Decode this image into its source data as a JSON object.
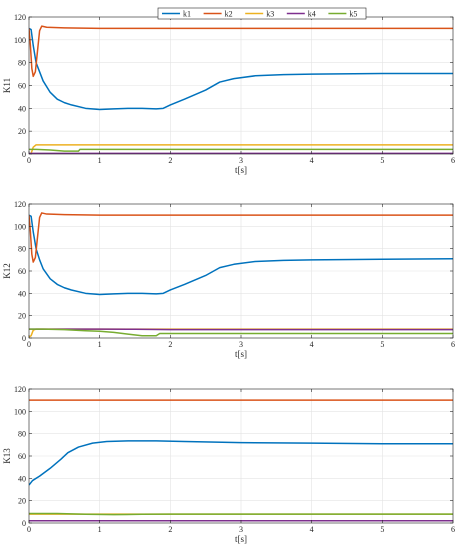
{
  "chart_data": [
    {
      "type": "line",
      "xlabel": "t[s]",
      "ylabel": "K11",
      "xlim": [
        0,
        6
      ],
      "ylim": [
        0,
        120
      ],
      "xticks": [
        0,
        1,
        2,
        3,
        4,
        5,
        6
      ],
      "yticks": [
        0,
        20,
        40,
        60,
        80,
        100,
        120
      ],
      "grid": true,
      "legend": "top-center",
      "series": [
        {
          "name": "k1",
          "color": "#0072BD",
          "points": [
            [
              0,
              110
            ],
            [
              0.03,
              109
            ],
            [
              0.06,
              95
            ],
            [
              0.1,
              80
            ],
            [
              0.15,
              72
            ],
            [
              0.2,
              64
            ],
            [
              0.3,
              54
            ],
            [
              0.4,
              48
            ],
            [
              0.5,
              45
            ],
            [
              0.6,
              43
            ],
            [
              0.8,
              40
            ],
            [
              1.0,
              39
            ],
            [
              1.2,
              39.5
            ],
            [
              1.4,
              40
            ],
            [
              1.6,
              40
            ],
            [
              1.8,
              39.5
            ],
            [
              1.9,
              40
            ],
            [
              2.0,
              43
            ],
            [
              2.2,
              48
            ],
            [
              2.5,
              56
            ],
            [
              2.7,
              63
            ],
            [
              2.9,
              66
            ],
            [
              3.2,
              68.5
            ],
            [
              3.6,
              69.5
            ],
            [
              4.0,
              70
            ],
            [
              5.0,
              70.5
            ],
            [
              6.0,
              70.5
            ]
          ]
        },
        {
          "name": "k2",
          "color": "#D95319",
          "points": [
            [
              0,
              110
            ],
            [
              0.02,
              95
            ],
            [
              0.04,
              75
            ],
            [
              0.06,
              68
            ],
            [
              0.09,
              72
            ],
            [
              0.12,
              90
            ],
            [
              0.15,
              108
            ],
            [
              0.18,
              112
            ],
            [
              0.25,
              111
            ],
            [
              0.5,
              110.5
            ],
            [
              1,
              110
            ],
            [
              2,
              110
            ],
            [
              3,
              110
            ],
            [
              4,
              110
            ],
            [
              5,
              110
            ],
            [
              6,
              110
            ]
          ]
        },
        {
          "name": "k3",
          "color": "#EDB120",
          "points": [
            [
              0,
              0
            ],
            [
              0.03,
              0.5
            ],
            [
              0.06,
              6
            ],
            [
              0.1,
              8
            ],
            [
              0.3,
              8
            ],
            [
              1,
              8
            ],
            [
              2,
              8
            ],
            [
              3,
              8
            ],
            [
              4,
              8
            ],
            [
              5,
              8
            ],
            [
              6,
              8
            ]
          ]
        },
        {
          "name": "k4",
          "color": "#7E2F8E",
          "points": [
            [
              0,
              0.5
            ],
            [
              0.05,
              0.5
            ],
            [
              0.2,
              0.5
            ],
            [
              1,
              0.5
            ],
            [
              2,
              0.5
            ],
            [
              3,
              0.5
            ],
            [
              4,
              0.5
            ],
            [
              5,
              0.5
            ],
            [
              6,
              0.5
            ]
          ]
        },
        {
          "name": "k5",
          "color": "#77AC30",
          "points": [
            [
              0,
              4
            ],
            [
              0.1,
              4
            ],
            [
              0.3,
              3.5
            ],
            [
              0.5,
              2.5
            ],
            [
              0.7,
              2.5
            ],
            [
              0.72,
              4
            ],
            [
              1,
              4
            ],
            [
              1.5,
              4
            ],
            [
              2,
              4
            ],
            [
              3,
              4
            ],
            [
              4,
              4
            ],
            [
              5,
              4
            ],
            [
              6,
              4
            ]
          ]
        }
      ]
    },
    {
      "type": "line",
      "xlabel": "t[s]",
      "ylabel": "K12",
      "xlim": [
        0,
        6
      ],
      "ylim": [
        0,
        120
      ],
      "xticks": [
        0,
        1,
        2,
        3,
        4,
        5,
        6
      ],
      "yticks": [
        0,
        20,
        40,
        60,
        80,
        100,
        120
      ],
      "grid": true,
      "series": [
        {
          "name": "k1",
          "color": "#0072BD",
          "points": [
            [
              0,
              110
            ],
            [
              0.03,
              109
            ],
            [
              0.06,
              95
            ],
            [
              0.1,
              80
            ],
            [
              0.15,
              70
            ],
            [
              0.2,
              62
            ],
            [
              0.3,
              53
            ],
            [
              0.4,
              48
            ],
            [
              0.5,
              45
            ],
            [
              0.6,
              43
            ],
            [
              0.8,
              40
            ],
            [
              1.0,
              39
            ],
            [
              1.2,
              39.5
            ],
            [
              1.4,
              40
            ],
            [
              1.6,
              40
            ],
            [
              1.8,
              39.5
            ],
            [
              1.9,
              40
            ],
            [
              2.0,
              43
            ],
            [
              2.2,
              48
            ],
            [
              2.5,
              56
            ],
            [
              2.7,
              63
            ],
            [
              2.9,
              66
            ],
            [
              3.2,
              68.5
            ],
            [
              3.6,
              69.5
            ],
            [
              4.0,
              70
            ],
            [
              5.0,
              70.5
            ],
            [
              6.0,
              71
            ]
          ]
        },
        {
          "name": "k2",
          "color": "#D95319",
          "points": [
            [
              0,
              110
            ],
            [
              0.02,
              95
            ],
            [
              0.04,
              75
            ],
            [
              0.06,
              68
            ],
            [
              0.09,
              72
            ],
            [
              0.12,
              90
            ],
            [
              0.15,
              108
            ],
            [
              0.18,
              112
            ],
            [
              0.25,
              111
            ],
            [
              0.5,
              110.5
            ],
            [
              1,
              110
            ],
            [
              2,
              110
            ],
            [
              3,
              110
            ],
            [
              4,
              110
            ],
            [
              5,
              110
            ],
            [
              6,
              110
            ]
          ]
        },
        {
          "name": "k3",
          "color": "#EDB120",
          "points": [
            [
              0,
              1
            ],
            [
              0.03,
              2
            ],
            [
              0.06,
              7
            ],
            [
              0.1,
              8
            ],
            [
              0.5,
              8
            ],
            [
              1,
              8
            ],
            [
              2,
              8
            ],
            [
              3,
              8
            ],
            [
              4,
              8
            ],
            [
              5,
              8
            ],
            [
              6,
              8
            ]
          ]
        },
        {
          "name": "k4",
          "color": "#7E2F8E",
          "points": [
            [
              0,
              8
            ],
            [
              0.1,
              8
            ],
            [
              0.5,
              8
            ],
            [
              1,
              8
            ],
            [
              1.5,
              7.8
            ],
            [
              2,
              7.5
            ],
            [
              3,
              7.5
            ],
            [
              4,
              7.5
            ],
            [
              5,
              7.5
            ],
            [
              6,
              7.5
            ]
          ]
        },
        {
          "name": "k5",
          "color": "#77AC30",
          "points": [
            [
              0,
              8
            ],
            [
              0.2,
              8
            ],
            [
              0.5,
              7.5
            ],
            [
              0.8,
              6.5
            ],
            [
              1.0,
              6
            ],
            [
              1.2,
              5
            ],
            [
              1.4,
              3.5
            ],
            [
              1.6,
              2
            ],
            [
              1.8,
              2
            ],
            [
              1.85,
              4
            ],
            [
              2,
              4
            ],
            [
              3,
              4
            ],
            [
              4,
              4
            ],
            [
              5,
              4
            ],
            [
              6,
              4
            ]
          ]
        }
      ]
    },
    {
      "type": "line",
      "xlabel": "t[s]",
      "ylabel": "K13",
      "xlim": [
        0,
        6
      ],
      "ylim": [
        0,
        120
      ],
      "xticks": [
        0,
        1,
        2,
        3,
        4,
        5,
        6
      ],
      "yticks": [
        0,
        20,
        40,
        60,
        80,
        100,
        120
      ],
      "grid": true,
      "series": [
        {
          "name": "k1",
          "color": "#0072BD",
          "points": [
            [
              0,
              34
            ],
            [
              0.05,
              38
            ],
            [
              0.15,
              42
            ],
            [
              0.3,
              49
            ],
            [
              0.45,
              57
            ],
            [
              0.55,
              63
            ],
            [
              0.7,
              68
            ],
            [
              0.9,
              71.5
            ],
            [
              1.1,
              73
            ],
            [
              1.4,
              73.5
            ],
            [
              1.8,
              73.5
            ],
            [
              2.2,
              73
            ],
            [
              3,
              72
            ],
            [
              4,
              71.5
            ],
            [
              5,
              71
            ],
            [
              6,
              71
            ]
          ]
        },
        {
          "name": "k2",
          "color": "#D95319",
          "points": [
            [
              0,
              110
            ],
            [
              0.5,
              110
            ],
            [
              1,
              110
            ],
            [
              2,
              110
            ],
            [
              3,
              110
            ],
            [
              4,
              110
            ],
            [
              5,
              110
            ],
            [
              6,
              110
            ]
          ]
        },
        {
          "name": "k3",
          "color": "#EDB120",
          "points": [
            [
              0,
              8
            ],
            [
              1,
              8
            ],
            [
              2,
              8
            ],
            [
              3,
              8
            ],
            [
              4,
              8
            ],
            [
              5,
              8
            ],
            [
              6,
              8
            ]
          ]
        },
        {
          "name": "k4",
          "color": "#7E2F8E",
          "points": [
            [
              0,
              2
            ],
            [
              1,
              2
            ],
            [
              2,
              2
            ],
            [
              3,
              2
            ],
            [
              4,
              2
            ],
            [
              5,
              2
            ],
            [
              6,
              2
            ]
          ]
        },
        {
          "name": "k5",
          "color": "#77AC30",
          "points": [
            [
              0,
              8.5
            ],
            [
              0.4,
              8.5
            ],
            [
              0.8,
              7.8
            ],
            [
              1.2,
              7.5
            ],
            [
              1.6,
              7.8
            ],
            [
              2,
              8
            ],
            [
              3,
              8
            ],
            [
              4,
              8
            ],
            [
              5,
              8
            ],
            [
              6,
              8
            ]
          ]
        }
      ]
    }
  ]
}
